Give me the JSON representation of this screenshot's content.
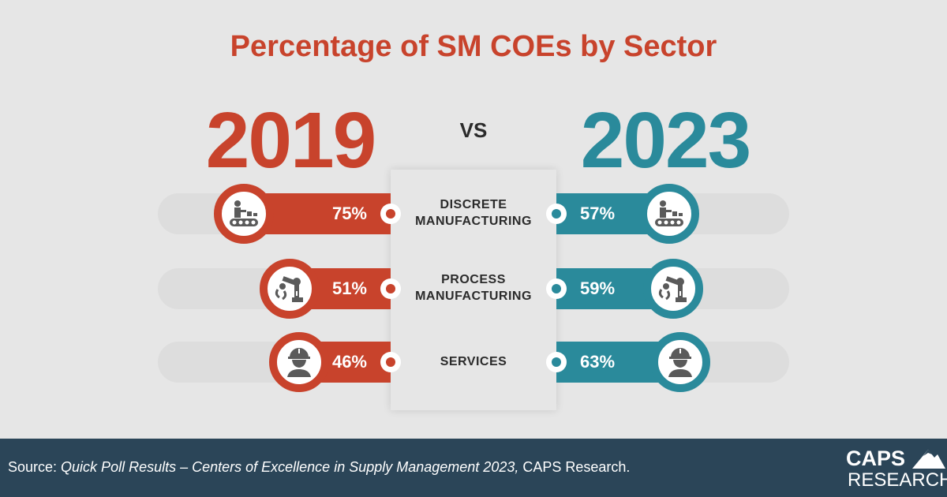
{
  "chart_data": {
    "type": "bar",
    "title": "Percentage of SM COEs by Sector",
    "comparison_word": "VS",
    "series": [
      {
        "name": "2019",
        "values": [
          75,
          51,
          46
        ],
        "color": "#c8432c"
      },
      {
        "name": "2023",
        "values": [
          57,
          59,
          63
        ],
        "color": "#2a8a9b"
      }
    ],
    "categories": [
      {
        "line1": "DISCRETE",
        "line2": "MANUFACTURING",
        "icon": "conveyor-worker-icon"
      },
      {
        "line1": "PROCESS",
        "line2": "MANUFACTURING",
        "icon": "robot-arm-icon"
      },
      {
        "line1": "SERVICES",
        "line2": "",
        "icon": "worker-helmet-icon"
      }
    ],
    "value_labels_left": [
      "75%",
      "51%",
      "46%"
    ],
    "value_labels_right": [
      "57%",
      "59%",
      "63%"
    ],
    "grid": false,
    "legend": "none"
  },
  "footer": {
    "source_prefix": "Source: ",
    "source_italic": "Quick Poll Results –  Centers of Excellence in Supply Management 2023,",
    "source_suffix": " CAPS Research.",
    "logo_line1": "CAPS",
    "logo_line2": "RESEARCH",
    "background": "#2b4558"
  }
}
